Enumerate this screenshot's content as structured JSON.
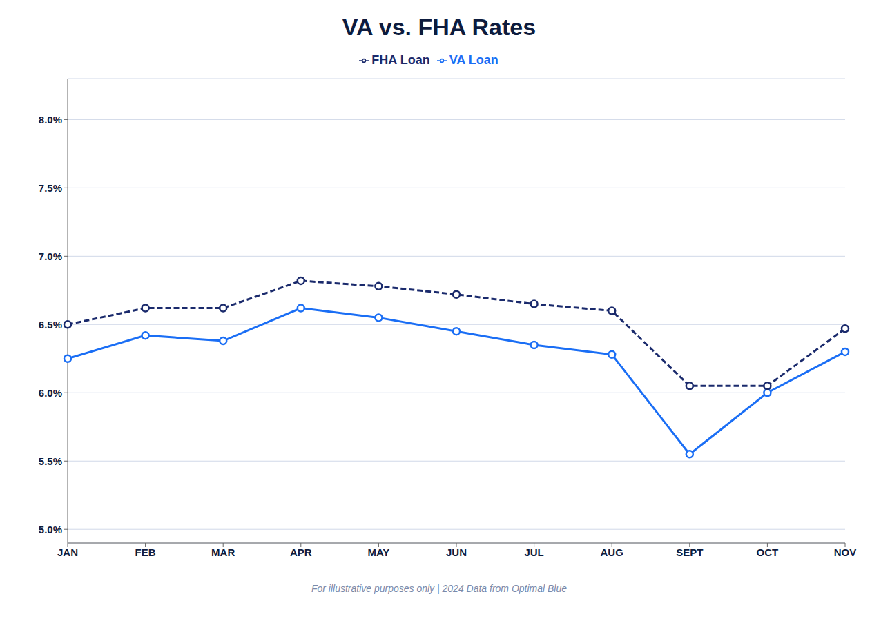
{
  "chart_data": {
    "type": "line",
    "title": "VA vs. FHA Rates",
    "subtitle": "For illustrative purposes only | 2024 Data from Optimal Blue",
    "categories": [
      "JAN",
      "FEB",
      "MAR",
      "APR",
      "MAY",
      "JUN",
      "JUL",
      "AUG",
      "SEPT",
      "OCT",
      "NOV"
    ],
    "series": [
      {
        "name": "VA Loan",
        "color": "#1a6ef5",
        "line_style": "solid",
        "marker": "circle",
        "values": [
          6.25,
          6.42,
          6.38,
          6.62,
          6.55,
          6.45,
          6.35,
          6.28,
          5.55,
          6.0,
          6.3
        ]
      },
      {
        "name": "FHA Loan",
        "color": "#1a2a6c",
        "line_style": "dashed",
        "marker": "circle",
        "values": [
          6.5,
          6.62,
          6.62,
          6.82,
          6.78,
          6.72,
          6.65,
          6.6,
          6.05,
          6.05,
          6.47
        ]
      }
    ],
    "ylim": [
      4.9,
      8.3
    ],
    "yticks": [
      {
        "value": 5.0,
        "label": "5.0%"
      },
      {
        "value": 5.5,
        "label": "5.5%"
      },
      {
        "value": 6.0,
        "label": "6.0%"
      },
      {
        "value": 6.5,
        "label": "6.5%"
      },
      {
        "value": 7.0,
        "label": "7.0%"
      },
      {
        "value": 7.5,
        "label": "7.5%"
      },
      {
        "value": 8.0,
        "label": "8.0%"
      }
    ],
    "grid": true,
    "legend": "top"
  }
}
